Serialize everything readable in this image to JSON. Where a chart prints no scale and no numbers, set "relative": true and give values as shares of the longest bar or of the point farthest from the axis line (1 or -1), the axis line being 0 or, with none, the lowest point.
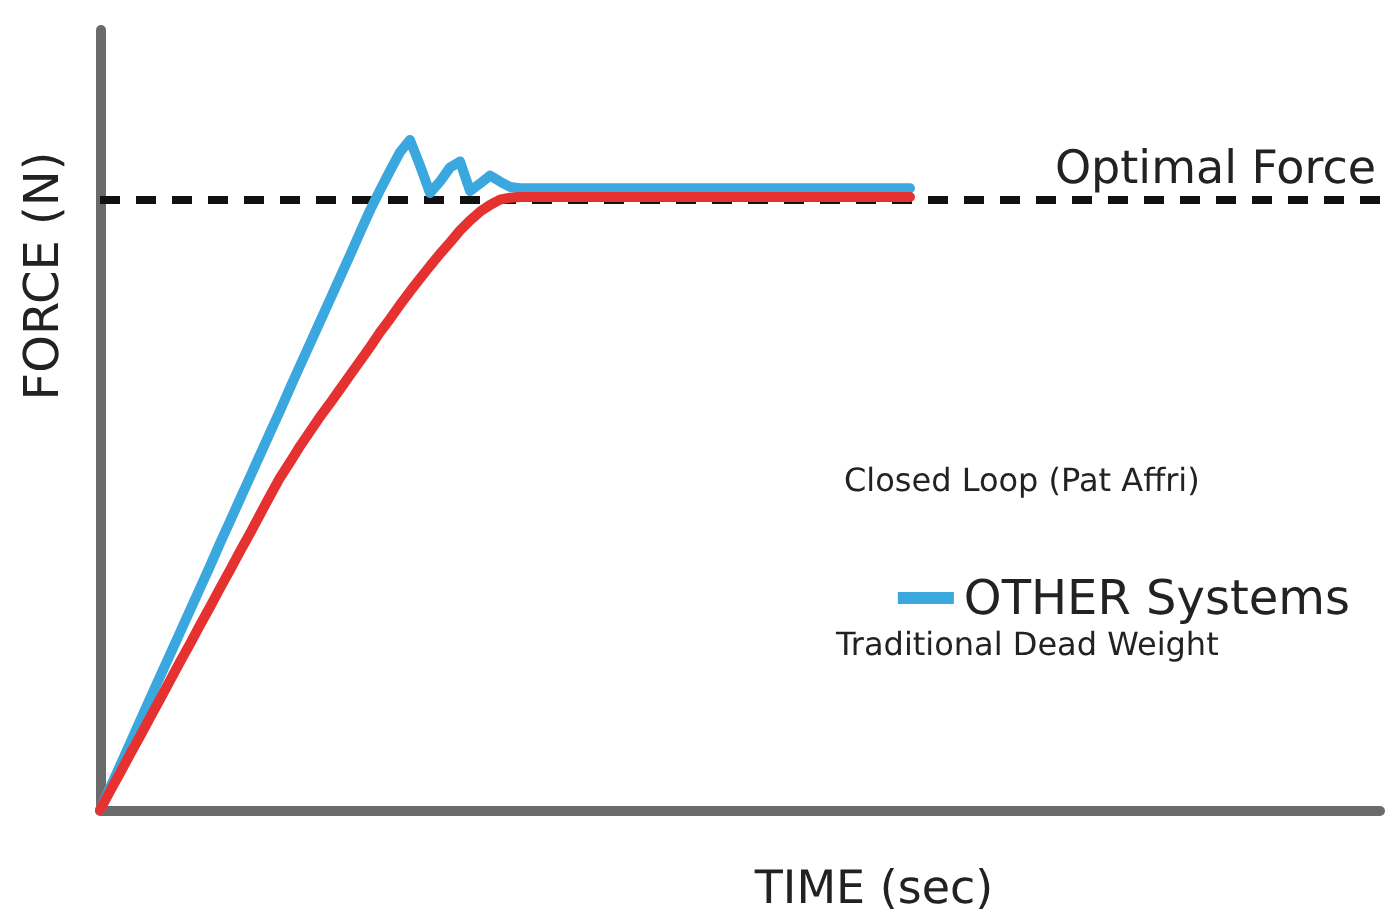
{
  "chart_data": {
    "type": "line",
    "relative": true,
    "xlabel": "TIME (sec)",
    "ylabel": "FORCE (N)",
    "categories": [
      null,
      null,
      null,
      null,
      null,
      null,
      null,
      null,
      null,
      null,
      null,
      null,
      null,
      null,
      null,
      null,
      null,
      null,
      null,
      null,
      null,
      null,
      null,
      null,
      null,
      null,
      null,
      null,
      null,
      null,
      null,
      null,
      null,
      null,
      null,
      null,
      null,
      null,
      null,
      null,
      null,
      null,
      null,
      null,
      null,
      null,
      null,
      null,
      null,
      null,
      null,
      null,
      null,
      null,
      null,
      null,
      null,
      null,
      null,
      null,
      null,
      null,
      null,
      null,
      null,
      null,
      null,
      null,
      null,
      null,
      null,
      null,
      null,
      null,
      null,
      null,
      null,
      null,
      null,
      null,
      null,
      null,
      null,
      null,
      null,
      null,
      null,
      null,
      null,
      null,
      null,
      null,
      null,
      null,
      null,
      null,
      null,
      null,
      null,
      null,
      null,
      null,
      null,
      null,
      null,
      null,
      null,
      null,
      null,
      null,
      null,
      null,
      null,
      null,
      null,
      null,
      null,
      null,
      null,
      null,
      null,
      null,
      null,
      null,
      null,
      null,
      null,
      null,
      null
    ],
    "series": [
      {
        "name": "OTHER Systems",
        "color": "#3aa8df",
        "values": [
          0,
          0.033,
          0.066,
          0.099,
          0.133,
          0.166,
          0.199,
          0.232,
          0.265,
          0.298,
          0.331,
          0.364,
          0.398,
          0.431,
          0.464,
          0.497,
          0.53,
          0.563,
          0.596,
          0.63,
          0.663,
          0.696,
          0.729,
          0.762,
          0.795,
          0.828,
          0.862,
          0.895,
          0.925,
          0.954,
          0.982,
          1,
          0.962,
          0.921,
          0.938,
          0.959,
          0.968,
          0.924,
          0.935,
          0.947,
          0.938,
          0.93,
          0.928,
          0.928,
          0.928,
          0.928,
          0.928,
          0.928,
          0.928,
          0.928,
          0.928,
          0.928,
          0.928,
          0.928,
          0.928,
          0.928,
          0.928,
          0.928,
          0.928,
          0.928,
          0.928,
          0.928,
          0.928,
          0.928,
          0.928,
          0.928,
          0.928,
          0.928,
          0.928,
          0.928,
          0.928,
          0.928,
          0.928,
          0.928,
          0.928,
          0.928,
          0.928,
          0.928,
          0.928,
          0.928,
          0.928,
          0.928,
          null,
          null,
          null,
          null,
          null,
          null,
          null,
          null,
          null,
          null,
          null,
          null,
          null,
          null,
          null,
          null,
          null,
          null,
          null,
          null,
          null,
          null,
          null,
          null,
          null,
          null,
          null,
          null,
          null,
          null,
          null,
          null,
          null,
          null,
          null,
          null,
          null,
          null,
          null,
          null,
          null,
          null,
          null,
          null,
          null,
          null,
          null
        ]
      },
      {
        "color": "#e5312f",
        "values": [
          0,
          0.028,
          0.055,
          0.083,
          0.11,
          0.138,
          0.165,
          0.193,
          0.221,
          0.248,
          0.276,
          0.303,
          0.331,
          0.358,
          0.386,
          0.413,
          0.441,
          0.469,
          0.496,
          0.519,
          0.543,
          0.565,
          0.587,
          0.607,
          0.628,
          0.649,
          0.67,
          0.691,
          0.713,
          0.733,
          0.754,
          0.774,
          0.793,
          0.812,
          0.83,
          0.847,
          0.865,
          0.88,
          0.893,
          0.903,
          0.911,
          0.914,
          0.915,
          0.915,
          0.915,
          0.915,
          0.915,
          0.915,
          0.915,
          0.915,
          0.915,
          0.915,
          0.915,
          0.915,
          0.915,
          0.915,
          0.915,
          0.915,
          0.915,
          0.915,
          0.915,
          0.915,
          0.915,
          0.915,
          0.915,
          0.915,
          0.915,
          0.915,
          0.915,
          0.915,
          0.915,
          0.915,
          0.915,
          0.915,
          0.915,
          0.915,
          0.915,
          0.915,
          0.915,
          0.915,
          0.915,
          0.915,
          null,
          null,
          null,
          null,
          null,
          null,
          null,
          null,
          null,
          null,
          null,
          null,
          null,
          null,
          null,
          null,
          null,
          null,
          null,
          null,
          null,
          null,
          null,
          null,
          null,
          null,
          null,
          null,
          null,
          null,
          null,
          null,
          null,
          null,
          null,
          null,
          null,
          null,
          null,
          null,
          null,
          null,
          null,
          null,
          null,
          null,
          null
        ]
      }
    ],
    "ref_lines": [
      {
        "axis": "y",
        "value": 0.912,
        "label": "Optimal Force",
        "color": "#111111",
        "line_style": "dashed"
      }
    ],
    "annotations": [
      "Closed Loop (Pat Affri)",
      "Traditional Dead Weight"
    ],
    "legend": "right",
    "marker": "none",
    "line_style": "solid"
  }
}
